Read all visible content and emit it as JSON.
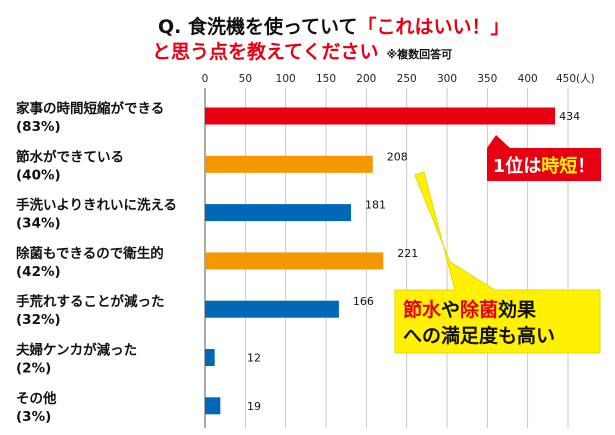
{
  "chart_data": {
    "type": "bar",
    "orientation": "horizontal",
    "title": {
      "prefix": "Q. 食洗機を使っていて",
      "highlight": "「これはいい！」",
      "line2": "と思う点を教えてください",
      "note": "※複数回答可"
    },
    "unit_label": "450(人)",
    "xlim": [
      0,
      450
    ],
    "xticks": [
      "0",
      "50",
      "100",
      "150",
      "200",
      "250",
      "300",
      "350",
      "400"
    ],
    "grid": true,
    "categories": [
      {
        "label": "家事の時間短縮ができる",
        "pct": "(83%)"
      },
      {
        "label": "節水ができている",
        "pct": "(40%)"
      },
      {
        "label": "手洗いよりきれいに洗える",
        "pct": "(34%)"
      },
      {
        "label": "除菌もできるので衛生的",
        "pct": "(42%)"
      },
      {
        "label": "手荒れすることが減った",
        "pct": "(32%)"
      },
      {
        "label": "夫婦ケンカが減った",
        "pct": "(2%)"
      },
      {
        "label": "その他",
        "pct": "(3%)"
      }
    ],
    "values": [
      434,
      208,
      181,
      221,
      166,
      12,
      19
    ],
    "value_labels": [
      "434",
      "208",
      "181",
      "221",
      "166",
      "12",
      "19"
    ],
    "bar_colors": [
      "#e60012",
      "#f39800",
      "#0068b7",
      "#f39800",
      "#0068b7",
      "#0068b7",
      "#0068b7"
    ],
    "callouts": {
      "first": {
        "a": "1位は",
        "b": "時短",
        "c": "！"
      },
      "second": {
        "a": "節水",
        "b": "や",
        "c": "除菌",
        "d": "効果",
        "line2": "への満足度も高い"
      }
    }
  },
  "colors": {
    "red": "#e60012",
    "orange": "#f39800",
    "blue": "#0068b7",
    "yellow": "#fff100",
    "grid": "#bdbdbd"
  }
}
